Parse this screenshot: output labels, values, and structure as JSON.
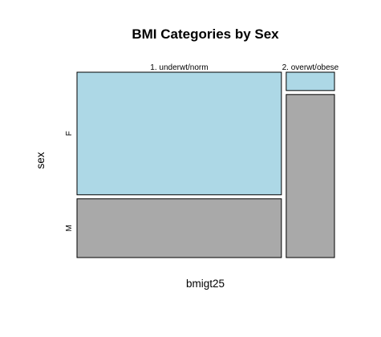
{
  "chart_data": {
    "type": "mosaic",
    "title": "BMI Categories by Sex",
    "xlabel": "bmigt25",
    "ylabel": "sex",
    "x_categories": [
      "1. underwt/norm",
      "2. overwt/obese"
    ],
    "y_categories": [
      "F",
      "M"
    ],
    "x_proportions": [
      0.809,
      0.191
    ],
    "conditional_y_proportions": [
      {
        "x": "1. underwt/norm",
        "F": 0.676,
        "M": 0.324
      },
      {
        "x": "2. overwt/obese",
        "F": 0.101,
        "M": 0.899
      }
    ],
    "colors": {
      "F": "#ADD8E6",
      "M": "#A9A9A9"
    }
  }
}
